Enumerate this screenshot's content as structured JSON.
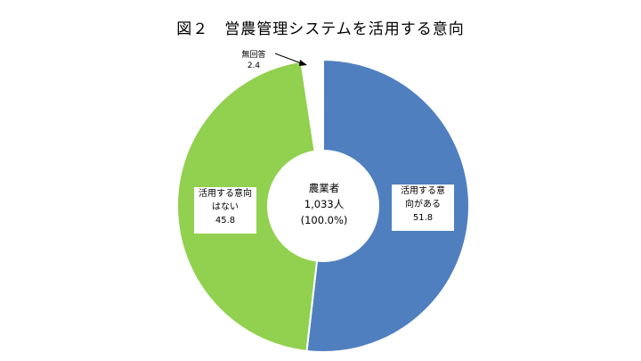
{
  "chart_data": {
    "type": "pie",
    "title": "図２　営農管理システムを活用する意向",
    "center_label": [
      "農業者",
      "1,033人",
      "(100.0%)"
    ],
    "slices": [
      {
        "name": "活用する意向がある",
        "value": 51.8,
        "color": "#4f7fbf",
        "label_lines": [
          "活用する意",
          "向がある",
          "51.8"
        ]
      },
      {
        "name": "活用する意向はない",
        "value": 45.8,
        "color": "#92d050",
        "label_lines": [
          "活用する意向",
          "はない",
          "45.8"
        ]
      },
      {
        "name": "無回答",
        "value": 2.4,
        "color": "#ffffff",
        "label_lines": [
          "無回答",
          "2.4"
        ]
      }
    ]
  }
}
